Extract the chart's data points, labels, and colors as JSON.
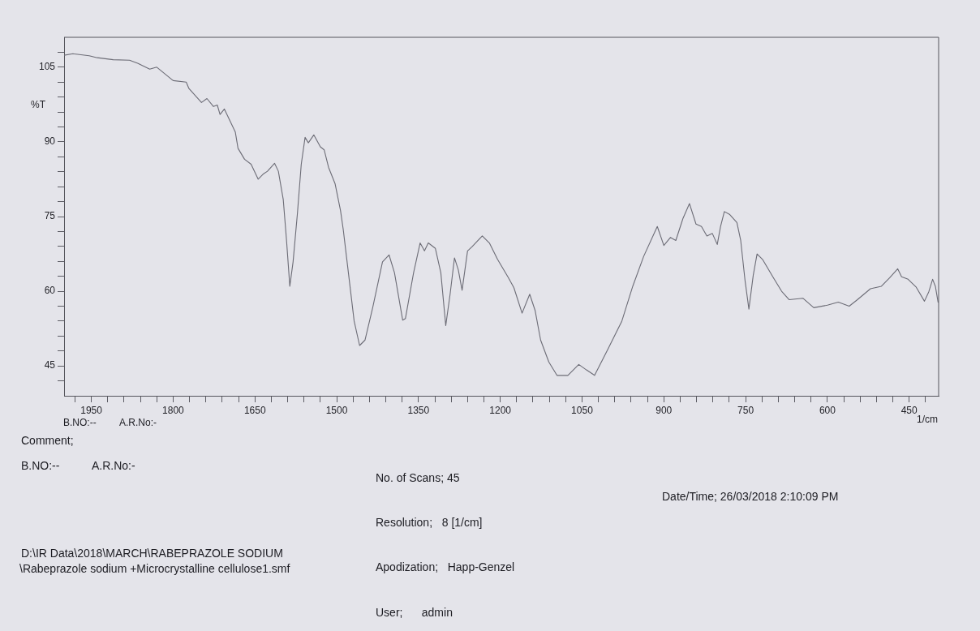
{
  "chart_data": {
    "type": "line",
    "xlabel": "1/cm",
    "ylabel": "%T",
    "color": "#6c6c76",
    "marker": "none",
    "line_style": "solid",
    "xlim": [
      2000,
      396
    ],
    "ylim": [
      39,
      111
    ],
    "xticks": [
      {
        "value": 1980,
        "label": null
      },
      1950,
      {
        "value": 1920,
        "label": null
      },
      {
        "value": 1890,
        "label": null
      },
      {
        "value": 1860,
        "label": null
      },
      {
        "value": 1830,
        "label": null
      },
      1800,
      {
        "value": 1770,
        "label": null
      },
      {
        "value": 1740,
        "label": null
      },
      {
        "value": 1710,
        "label": null
      },
      {
        "value": 1680,
        "label": null
      },
      1650,
      {
        "value": 1620,
        "label": null
      },
      {
        "value": 1590,
        "label": null
      },
      {
        "value": 1560,
        "label": null
      },
      {
        "value": 1530,
        "label": null
      },
      1500,
      {
        "value": 1470,
        "label": null
      },
      {
        "value": 1440,
        "label": null
      },
      {
        "value": 1410,
        "label": null
      },
      {
        "value": 1380,
        "label": null
      },
      1350,
      {
        "value": 1320,
        "label": null
      },
      {
        "value": 1290,
        "label": null
      },
      {
        "value": 1260,
        "label": null
      },
      {
        "value": 1230,
        "label": null
      },
      1200,
      {
        "value": 1170,
        "label": null
      },
      {
        "value": 1140,
        "label": null
      },
      {
        "value": 1110,
        "label": null
      },
      {
        "value": 1080,
        "label": null
      },
      1050,
      {
        "value": 1020,
        "label": null
      },
      {
        "value": 990,
        "label": null
      },
      {
        "value": 960,
        "label": null
      },
      {
        "value": 930,
        "label": null
      },
      900,
      {
        "value": 870,
        "label": null
      },
      {
        "value": 840,
        "label": null
      },
      {
        "value": 810,
        "label": null
      },
      {
        "value": 780,
        "label": null
      },
      750,
      {
        "value": 720,
        "label": null
      },
      {
        "value": 690,
        "label": null
      },
      {
        "value": 660,
        "label": null
      },
      {
        "value": 630,
        "label": null
      },
      600,
      {
        "value": 570,
        "label": null
      },
      {
        "value": 540,
        "label": null
      },
      {
        "value": 510,
        "label": null
      },
      {
        "value": 480,
        "label": null
      },
      450,
      {
        "value": 420,
        "label": null
      }
    ],
    "yticks": [
      {
        "value": 42,
        "label": null
      },
      45,
      {
        "value": 48,
        "label": null
      },
      {
        "value": 51,
        "label": null
      },
      {
        "value": 54,
        "label": null
      },
      {
        "value": 57,
        "label": null
      },
      60,
      {
        "value": 63,
        "label": null
      },
      {
        "value": 66,
        "label": null
      },
      {
        "value": 69,
        "label": null
      },
      {
        "value": 72,
        "label": null
      },
      75,
      {
        "value": 78,
        "label": null
      },
      {
        "value": 81,
        "label": null
      },
      {
        "value": 84,
        "label": null
      },
      {
        "value": 87,
        "label": null
      },
      90,
      {
        "value": 93,
        "label": null
      },
      {
        "value": 96,
        "label": null
      },
      {
        "value": 99,
        "label": null
      },
      {
        "value": 102,
        "label": null
      },
      105,
      {
        "value": 108,
        "label": null
      }
    ],
    "x": [
      2000,
      1984,
      1954,
      1939,
      1910,
      1880,
      1865,
      1843,
      1830,
      1800,
      1776,
      1771,
      1748,
      1738,
      1726,
      1719,
      1714,
      1706,
      1686,
      1681,
      1669,
      1657,
      1644,
      1634,
      1627,
      1614,
      1607,
      1598,
      1592,
      1586,
      1580,
      1572,
      1565,
      1558,
      1552,
      1542,
      1530,
      1523,
      1515,
      1503,
      1493,
      1488,
      1478,
      1468,
      1458,
      1448,
      1434,
      1416,
      1404,
      1394,
      1379,
      1374,
      1359,
      1347,
      1339,
      1332,
      1319,
      1309,
      1300,
      1292,
      1284,
      1277,
      1270,
      1260,
      1252,
      1233,
      1220,
      1205,
      1185,
      1175,
      1160,
      1146,
      1136,
      1126,
      1111,
      1096,
      1076,
      1056,
      1042,
      1027,
      1002,
      977,
      957,
      937,
      912,
      900,
      888,
      878,
      865,
      853,
      841,
      831,
      821,
      811,
      802,
      796,
      789,
      779,
      766,
      759,
      751,
      744,
      736,
      729,
      719,
      699,
      684,
      670,
      645,
      625,
      600,
      580,
      560,
      545,
      521,
      501,
      486,
      471,
      464,
      452,
      437,
      422,
      414,
      407,
      402,
      397
    ],
    "values": [
      107.4,
      107.7,
      107.3,
      106.9,
      106.5,
      106.4,
      105.8,
      104.6,
      105,
      102.3,
      102,
      100.7,
      97.9,
      98.7,
      97.1,
      97.4,
      95.5,
      96.6,
      92,
      88.7,
      86.5,
      85.5,
      82.5,
      83.6,
      84.1,
      85.7,
      84.1,
      78.4,
      70.2,
      61,
      65.9,
      75.7,
      85.5,
      90.9,
      89.8,
      91.4,
      89,
      88.4,
      84.9,
      81.6,
      76.2,
      72.4,
      63.2,
      54,
      49.1,
      50.2,
      56.7,
      65.9,
      67.3,
      63.7,
      54.2,
      54.5,
      63.7,
      69.7,
      68.1,
      69.7,
      68.6,
      63.7,
      53.1,
      59.4,
      66.7,
      64.3,
      60.2,
      68.1,
      68.9,
      71.1,
      69.7,
      66.4,
      62.7,
      60.7,
      55.6,
      59.4,
      56.1,
      50.2,
      45.8,
      43.1,
      43.1,
      45.3,
      44.2,
      43.1,
      48.5,
      54,
      61,
      67,
      73,
      69.2,
      70.8,
      70.2,
      74.6,
      77.6,
      73.5,
      73,
      71.1,
      71.6,
      69.4,
      73,
      76,
      75.4,
      73.8,
      70.2,
      62.1,
      56.4,
      63.2,
      67.5,
      66.4,
      62.7,
      60,
      58.3,
      58.6,
      56.7,
      57.2,
      57.8,
      57,
      58.3,
      60.5,
      61,
      62.7,
      64.5,
      62.9,
      62.4,
      60.8,
      58,
      59.9,
      62.4,
      61,
      57.8
    ],
    "annotations": [
      "B.NO:--",
      "A.R.No:-",
      "Comment;",
      "B.NO:--",
      "A.R.No:-",
      "No. of Scans; 45",
      "Date/Time; 26/03/2018 2:10:09 PM",
      "Resolution;   8 [1/cm]",
      "D:\\IR Data\\2018\\MARCH\\RABEPRAZOLE SODIUM",
      "\\Rabeprazole sodium +Microcrystalline cellulose1.smf",
      "Apodization;   Happ-Genzel",
      "User;      admin"
    ]
  }
}
